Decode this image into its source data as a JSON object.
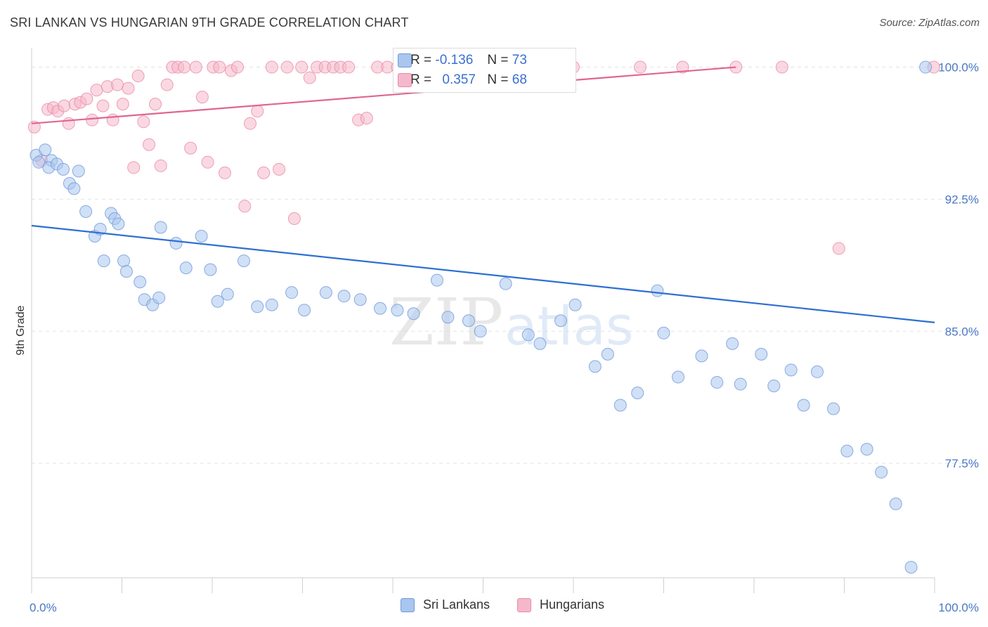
{
  "title": "SRI LANKAN VS HUNGARIAN 9TH GRADE CORRELATION CHART",
  "source": "Source: ZipAtlas.com",
  "watermark": {
    "zip": "ZIP",
    "atlas": "atlas"
  },
  "colors": {
    "blue_fill": "#a9c6ef",
    "blue_stroke": "#6f9ad8",
    "blue_line": "#2f6fd1",
    "pink_fill": "#f5b8ca",
    "pink_stroke": "#e98aa8",
    "pink_line": "#e0668f",
    "axis_text": "#4a78c4",
    "grid": "#e3e3e3"
  },
  "stats": [
    {
      "series": "Sri Lankans",
      "r_label": "R =",
      "r": "-0.136",
      "n_label": "N =",
      "n": "73"
    },
    {
      "series": "Hungarians",
      "r_label": "R =",
      "r": "0.357",
      "n_label": "N =",
      "n": "68"
    }
  ],
  "chart_data": {
    "type": "scatter",
    "title": "SRI LANKAN VS HUNGARIAN 9TH GRADE CORRELATION CHART",
    "xlabel": "",
    "ylabel": "9th Grade",
    "xlim": [
      0,
      100
    ],
    "ylim": [
      71,
      100.7
    ],
    "x_tick_labels": [
      "0.0%",
      "100.0%"
    ],
    "y_ticks": [
      77.5,
      85.0,
      92.5,
      100.0
    ],
    "y_tick_labels": [
      "77.5%",
      "85.0%",
      "92.5%",
      "100.0%"
    ],
    "grid": true,
    "legend_location": "bottom",
    "series": [
      {
        "name": "Sri Lankans",
        "trend": {
          "x": [
            0,
            100
          ],
          "y": [
            91.0,
            85.5
          ]
        },
        "points": [
          [
            0.5,
            95.0
          ],
          [
            0.8,
            94.6
          ],
          [
            1.5,
            95.3
          ],
          [
            2.2,
            94.7
          ],
          [
            1.9,
            94.3
          ],
          [
            2.8,
            94.5
          ],
          [
            3.5,
            94.2
          ],
          [
            5.2,
            94.1
          ],
          [
            4.2,
            93.4
          ],
          [
            4.7,
            93.1
          ],
          [
            6.0,
            91.8
          ],
          [
            7.0,
            90.4
          ],
          [
            8.0,
            89.0
          ],
          [
            7.6,
            90.8
          ],
          [
            8.8,
            91.7
          ],
          [
            9.2,
            91.4
          ],
          [
            9.6,
            91.1
          ],
          [
            10.2,
            89.0
          ],
          [
            10.5,
            88.4
          ],
          [
            12.0,
            87.8
          ],
          [
            12.5,
            86.8
          ],
          [
            13.4,
            86.5
          ],
          [
            14.1,
            86.9
          ],
          [
            14.3,
            90.9
          ],
          [
            16.0,
            90.0
          ],
          [
            17.1,
            88.6
          ],
          [
            18.8,
            90.4
          ],
          [
            19.8,
            88.5
          ],
          [
            20.6,
            86.7
          ],
          [
            21.7,
            87.1
          ],
          [
            23.5,
            89.0
          ],
          [
            25.0,
            86.4
          ],
          [
            26.6,
            86.5
          ],
          [
            28.8,
            87.2
          ],
          [
            30.2,
            86.2
          ],
          [
            32.6,
            87.2
          ],
          [
            34.6,
            87.0
          ],
          [
            36.4,
            86.8
          ],
          [
            38.6,
            86.3
          ],
          [
            40.5,
            86.2
          ],
          [
            42.3,
            86.0
          ],
          [
            44.9,
            87.9
          ],
          [
            46.1,
            85.8
          ],
          [
            48.4,
            85.6
          ],
          [
            49.7,
            85.0
          ],
          [
            52.5,
            87.7
          ],
          [
            55.0,
            84.8
          ],
          [
            56.3,
            84.3
          ],
          [
            58.6,
            85.6
          ],
          [
            60.2,
            86.5
          ],
          [
            62.4,
            83.0
          ],
          [
            63.8,
            83.7
          ],
          [
            65.2,
            80.8
          ],
          [
            67.1,
            81.5
          ],
          [
            69.3,
            87.3
          ],
          [
            70.0,
            84.9
          ],
          [
            71.6,
            82.4
          ],
          [
            74.2,
            83.6
          ],
          [
            75.9,
            82.1
          ],
          [
            77.6,
            84.3
          ],
          [
            78.5,
            82.0
          ],
          [
            80.8,
            83.7
          ],
          [
            82.2,
            81.9
          ],
          [
            84.1,
            82.8
          ],
          [
            85.5,
            80.8
          ],
          [
            87.0,
            82.7
          ],
          [
            88.8,
            80.6
          ],
          [
            90.3,
            78.2
          ],
          [
            92.5,
            78.3
          ],
          [
            94.1,
            77.0
          ],
          [
            95.7,
            75.2
          ],
          [
            97.4,
            71.6
          ],
          [
            99.0,
            100.0
          ]
        ]
      },
      {
        "name": "Hungarians",
        "trend": {
          "x": [
            0,
            78
          ],
          "y": [
            96.8,
            100.0
          ]
        },
        "points": [
          [
            0.3,
            96.6
          ],
          [
            1.1,
            94.7
          ],
          [
            1.8,
            97.6
          ],
          [
            2.4,
            97.7
          ],
          [
            2.9,
            97.5
          ],
          [
            3.6,
            97.8
          ],
          [
            4.1,
            96.8
          ],
          [
            4.8,
            97.9
          ],
          [
            5.4,
            98.0
          ],
          [
            6.1,
            98.2
          ],
          [
            6.7,
            97.0
          ],
          [
            7.2,
            98.7
          ],
          [
            7.9,
            97.8
          ],
          [
            8.4,
            98.9
          ],
          [
            9.0,
            97.0
          ],
          [
            9.5,
            99.0
          ],
          [
            10.1,
            97.9
          ],
          [
            10.7,
            98.8
          ],
          [
            11.3,
            94.3
          ],
          [
            11.8,
            99.5
          ],
          [
            12.4,
            96.9
          ],
          [
            13.0,
            95.6
          ],
          [
            13.7,
            97.9
          ],
          [
            14.3,
            94.4
          ],
          [
            15.0,
            99.0
          ],
          [
            15.6,
            100.0
          ],
          [
            16.2,
            100.0
          ],
          [
            16.9,
            100.0
          ],
          [
            17.6,
            95.4
          ],
          [
            18.2,
            100.0
          ],
          [
            18.9,
            98.3
          ],
          [
            19.5,
            94.6
          ],
          [
            20.1,
            100.0
          ],
          [
            20.8,
            100.0
          ],
          [
            21.4,
            94.0
          ],
          [
            22.1,
            99.8
          ],
          [
            22.8,
            100.0
          ],
          [
            23.6,
            92.1
          ],
          [
            24.2,
            96.8
          ],
          [
            25.0,
            97.5
          ],
          [
            25.7,
            94.0
          ],
          [
            26.6,
            100.0
          ],
          [
            27.4,
            94.2
          ],
          [
            28.3,
            100.0
          ],
          [
            29.1,
            91.4
          ],
          [
            29.9,
            100.0
          ],
          [
            30.8,
            99.4
          ],
          [
            31.6,
            100.0
          ],
          [
            32.5,
            100.0
          ],
          [
            33.4,
            100.0
          ],
          [
            34.2,
            100.0
          ],
          [
            35.1,
            100.0
          ],
          [
            36.2,
            97.0
          ],
          [
            37.1,
            97.1
          ],
          [
            38.3,
            100.0
          ],
          [
            39.4,
            100.0
          ],
          [
            40.5,
            100.0
          ],
          [
            41.7,
            100.0
          ],
          [
            42.9,
            100.0
          ],
          [
            44.0,
            100.0
          ],
          [
            55.2,
            100.0
          ],
          [
            60.0,
            100.0
          ],
          [
            67.4,
            100.0
          ],
          [
            72.1,
            100.0
          ],
          [
            78.0,
            100.0
          ],
          [
            83.1,
            100.0
          ],
          [
            89.4,
            89.7
          ],
          [
            99.9,
            100.0
          ]
        ]
      }
    ]
  }
}
